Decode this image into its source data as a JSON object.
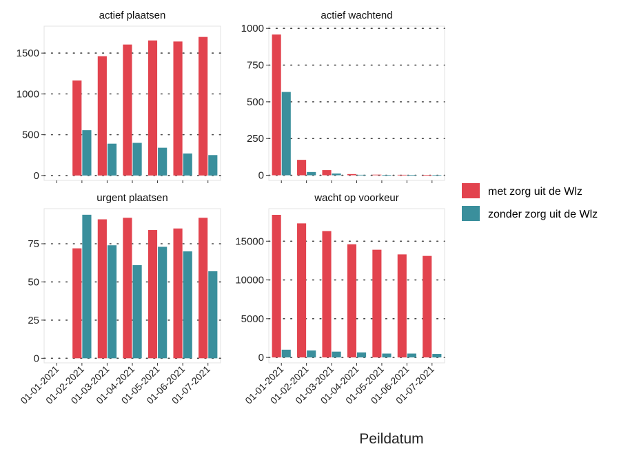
{
  "series_names": [
    "met zorg uit de Wlz",
    "zonder zorg uit de Wlz"
  ],
  "series_colors": [
    "#e2434e",
    "#3a8f9c"
  ],
  "xlabel": "Peildatum",
  "chart_data": [
    {
      "type": "bar",
      "title": "actief plaatsen",
      "categories": [
        "01-01-2021",
        "01-02-2021",
        "01-03-2021",
        "01-04-2021",
        "01-05-2021",
        "01-06-2021",
        "01-07-2021"
      ],
      "series": [
        {
          "name": "met zorg uit de Wlz",
          "values": [
            null,
            1165,
            1462,
            1605,
            1655,
            1642,
            1698
          ]
        },
        {
          "name": "zonder zorg uit de Wlz",
          "values": [
            null,
            555,
            390,
            400,
            340,
            270,
            250
          ]
        }
      ],
      "yticks": [
        0,
        500,
        1000,
        1500
      ],
      "ylim": [
        -60,
        1830
      ],
      "xlabel": "",
      "ylabel": ""
    },
    {
      "type": "bar",
      "title": "actief wachtend",
      "categories": [
        "01-01-2021",
        "01-02-2021",
        "01-03-2021",
        "01-04-2021",
        "01-05-2021",
        "01-06-2021",
        "01-07-2021"
      ],
      "series": [
        {
          "name": "met zorg uit de Wlz",
          "values": [
            958,
            105,
            35,
            8,
            4,
            3,
            2
          ]
        },
        {
          "name": "zonder zorg uit de Wlz",
          "values": [
            567,
            22,
            12,
            3,
            2,
            2,
            1
          ]
        }
      ],
      "yticks": [
        0,
        250,
        500,
        750,
        1000
      ],
      "ylim": [
        -35,
        1015
      ],
      "xlabel": "",
      "ylabel": ""
    },
    {
      "type": "bar",
      "title": "urgent plaatsen",
      "categories": [
        "01-01-2021",
        "01-02-2021",
        "01-03-2021",
        "01-04-2021",
        "01-05-2021",
        "01-06-2021",
        "01-07-2021"
      ],
      "series": [
        {
          "name": "met zorg uit de Wlz",
          "values": [
            null,
            72,
            91,
            92,
            84,
            85,
            92
          ]
        },
        {
          "name": "zonder zorg uit de Wlz",
          "values": [
            null,
            94,
            74,
            61,
            73,
            70,
            57
          ]
        }
      ],
      "yticks": [
        0,
        25,
        50,
        75
      ],
      "ylim": [
        -3,
        98
      ],
      "xlabel": "",
      "ylabel": ""
    },
    {
      "type": "bar",
      "title": "wacht op voorkeur",
      "categories": [
        "01-01-2021",
        "01-02-2021",
        "01-03-2021",
        "01-04-2021",
        "01-05-2021",
        "01-06-2021",
        "01-07-2021"
      ],
      "series": [
        {
          "name": "met zorg uit de Wlz",
          "values": [
            18400,
            17300,
            16300,
            14600,
            13900,
            13300,
            13100
          ]
        },
        {
          "name": "zonder zorg uit de Wlz",
          "values": [
            1000,
            900,
            750,
            650,
            500,
            500,
            450
          ]
        }
      ],
      "yticks": [
        0,
        5000,
        10000,
        15000
      ],
      "ylim": [
        -700,
        19200
      ],
      "xlabel": "",
      "ylabel": ""
    }
  ]
}
